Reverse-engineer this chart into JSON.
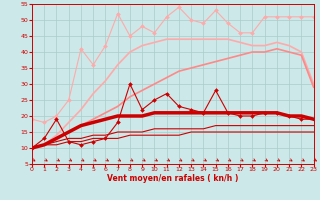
{
  "title": "",
  "xlabel": "Vent moyen/en rafales ( kn/h )",
  "xlim": [
    0,
    23
  ],
  "ylim": [
    5,
    55
  ],
  "yticks": [
    5,
    10,
    15,
    20,
    25,
    30,
    35,
    40,
    45,
    50,
    55
  ],
  "xticks": [
    0,
    1,
    2,
    3,
    4,
    5,
    6,
    7,
    8,
    9,
    10,
    11,
    12,
    13,
    14,
    15,
    16,
    17,
    18,
    19,
    20,
    21,
    22,
    23
  ],
  "bg_color": "#cce8e8",
  "grid_color": "#aacccc",
  "series": [
    {
      "x": [
        0,
        1,
        2,
        3,
        4,
        5,
        6,
        7,
        8,
        9,
        10,
        11,
        12,
        13,
        14,
        15,
        16,
        17,
        18,
        19,
        20,
        21,
        22,
        23
      ],
      "y": [
        19,
        18,
        20,
        25,
        41,
        36,
        42,
        52,
        45,
        48,
        46,
        51,
        54,
        50,
        49,
        53,
        49,
        46,
        46,
        51,
        51,
        51,
        51,
        51
      ],
      "color": "#ffaaaa",
      "lw": 0.8,
      "marker": "D",
      "ms": 2.0,
      "ls": "-",
      "zorder": 2
    },
    {
      "x": [
        0,
        1,
        2,
        3,
        4,
        5,
        6,
        7,
        8,
        9,
        10,
        11,
        12,
        13,
        14,
        15,
        16,
        17,
        18,
        19,
        20,
        21,
        22,
        23
      ],
      "y": [
        10,
        11,
        14,
        18,
        22,
        27,
        31,
        36,
        40,
        42,
        43,
        44,
        44,
        44,
        44,
        44,
        44,
        43,
        42,
        42,
        43,
        42,
        40,
        30
      ],
      "color": "#ffaaaa",
      "lw": 1.2,
      "marker": null,
      "ms": 0,
      "ls": "-",
      "zorder": 2
    },
    {
      "x": [
        0,
        1,
        2,
        3,
        4,
        5,
        6,
        7,
        8,
        9,
        10,
        11,
        12,
        13,
        14,
        15,
        16,
        17,
        18,
        19,
        20,
        21,
        22,
        23
      ],
      "y": [
        10,
        11,
        13,
        15,
        17,
        19,
        21,
        23,
        26,
        28,
        30,
        32,
        34,
        35,
        36,
        37,
        38,
        39,
        40,
        40,
        41,
        40,
        39,
        29
      ],
      "color": "#ff8888",
      "lw": 1.2,
      "marker": null,
      "ms": 0,
      "ls": "-",
      "zorder": 3
    },
    {
      "x": [
        0,
        1,
        2,
        3,
        4,
        5,
        6,
        7,
        8,
        9,
        10,
        11,
        12,
        13,
        14,
        15,
        16,
        17,
        18,
        19,
        20,
        21,
        22,
        23
      ],
      "y": [
        10,
        13,
        19,
        12,
        11,
        12,
        13,
        18,
        30,
        22,
        25,
        27,
        23,
        22,
        21,
        28,
        21,
        20,
        20,
        21,
        21,
        20,
        19,
        19
      ],
      "color": "#cc0000",
      "lw": 0.8,
      "marker": "D",
      "ms": 2.0,
      "ls": "-",
      "zorder": 5
    },
    {
      "x": [
        0,
        1,
        2,
        3,
        4,
        5,
        6,
        7,
        8,
        9,
        10,
        11,
        12,
        13,
        14,
        15,
        16,
        17,
        18,
        19,
        20,
        21,
        22,
        23
      ],
      "y": [
        10,
        11,
        13,
        15,
        17,
        18,
        19,
        20,
        20,
        20,
        21,
        21,
        21,
        21,
        21,
        21,
        21,
        21,
        21,
        21,
        21,
        20,
        20,
        19
      ],
      "color": "#cc0000",
      "lw": 2.5,
      "marker": null,
      "ms": 0,
      "ls": "-",
      "zorder": 4
    },
    {
      "x": [
        0,
        1,
        2,
        3,
        4,
        5,
        6,
        7,
        8,
        9,
        10,
        11,
        12,
        13,
        14,
        15,
        16,
        17,
        18,
        19,
        20,
        21,
        22,
        23
      ],
      "y": [
        10,
        11,
        12,
        13,
        13,
        14,
        14,
        15,
        15,
        15,
        16,
        16,
        16,
        16,
        16,
        17,
        17,
        17,
        17,
        17,
        17,
        17,
        17,
        17
      ],
      "color": "#cc0000",
      "lw": 0.8,
      "marker": null,
      "ms": 0,
      "ls": "-",
      "zorder": 3
    },
    {
      "x": [
        0,
        1,
        2,
        3,
        4,
        5,
        6,
        7,
        8,
        9,
        10,
        11,
        12,
        13,
        14,
        15,
        16,
        17,
        18,
        19,
        20,
        21,
        22,
        23
      ],
      "y": [
        10,
        11,
        11,
        12,
        12,
        13,
        13,
        13,
        14,
        14,
        14,
        14,
        14,
        15,
        15,
        15,
        15,
        15,
        15,
        15,
        15,
        15,
        15,
        15
      ],
      "color": "#cc0000",
      "lw": 0.8,
      "marker": null,
      "ms": 0,
      "ls": "-",
      "zorder": 3
    }
  ],
  "arrow_color": "#cc0000",
  "font_color": "#cc0000"
}
